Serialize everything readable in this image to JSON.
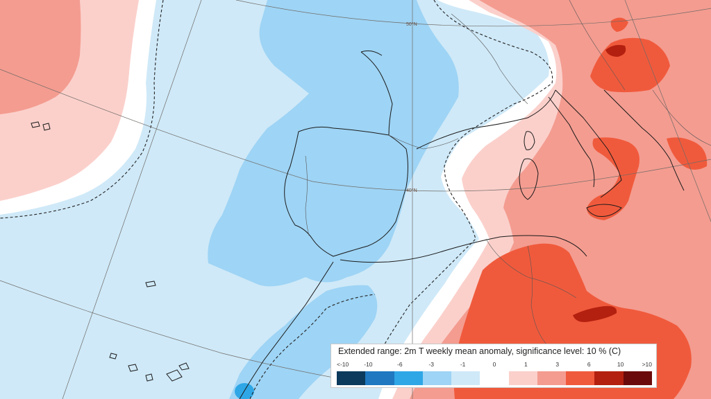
{
  "legend": {
    "title": "Extended range: 2m T weekly mean anomaly, significance level: 10 % (C)",
    "ticks": [
      "<-10",
      "-10",
      "-6",
      "-3",
      "-1",
      "0",
      "1",
      "3",
      "6",
      "10",
      ">10"
    ],
    "colors": [
      "#0b3a5c",
      "#1f78c0",
      "#2fa7e6",
      "#9ed4f5",
      "#cfe9f8",
      "#ffffff",
      "#fbd0cb",
      "#f49c90",
      "#f05a3c",
      "#b3200f",
      "#6b0a0a"
    ]
  },
  "grid_labels": {
    "lat50": "50°N",
    "lat40": "40°N"
  },
  "map": {
    "variable": "2m temperature weekly mean anomaly",
    "units": "C"
  }
}
